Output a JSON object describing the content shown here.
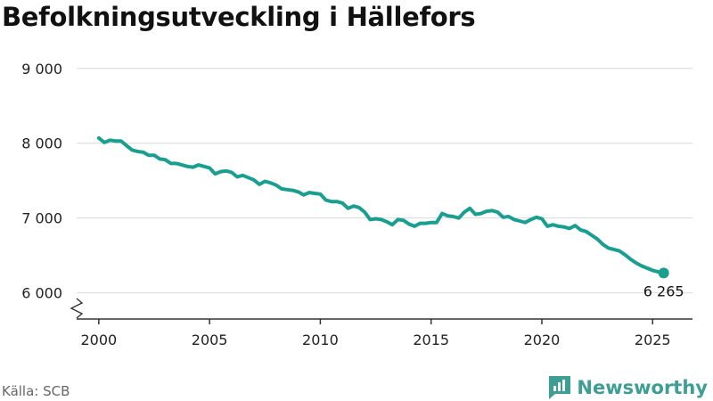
{
  "title": "Befolkningsutveckling i Hällefors",
  "source": "Källa: SCB",
  "brand": "Newsworthy",
  "colors": {
    "line": "#1a9e90",
    "brand": "#3d9e94"
  },
  "chart_data": {
    "type": "line",
    "title": "Befolkningsutveckling i Hällefors",
    "xlabel": "",
    "ylabel": "",
    "xlim": [
      1999.0,
      2026.8
    ],
    "ylim": [
      5650,
      9200
    ],
    "y_ticks": [
      6000,
      7000,
      8000,
      9000
    ],
    "y_tick_labels": [
      "6 000",
      "7 000",
      "8 000",
      "9 000"
    ],
    "x_ticks": [
      2000,
      2005,
      2010,
      2015,
      2020,
      2025
    ],
    "x_tick_labels": [
      "2000",
      "2005",
      "2010",
      "2015",
      "2020",
      "2025"
    ],
    "y_axis_break": true,
    "grid": "horizontal",
    "end_label": "6 265",
    "series": [
      {
        "x": [
          2000.0,
          2000.25,
          2000.5,
          2000.75,
          2001.0,
          2001.25,
          2001.5,
          2001.75,
          2002.0,
          2002.25,
          2002.5,
          2002.75,
          2003.0,
          2003.25,
          2003.5,
          2003.75,
          2004.0,
          2004.25,
          2004.5,
          2004.75,
          2005.0,
          2005.25,
          2005.5,
          2005.75,
          2006.0,
          2006.25,
          2006.5,
          2006.75,
          2007.0,
          2007.25,
          2007.5,
          2007.75,
          2008.0,
          2008.25,
          2008.5,
          2008.75,
          2009.0,
          2009.25,
          2009.5,
          2009.75,
          2010.0,
          2010.25,
          2010.5,
          2010.75,
          2011.0,
          2011.25,
          2011.5,
          2011.75,
          2012.0,
          2012.25,
          2012.5,
          2012.75,
          2013.0,
          2013.25,
          2013.5,
          2013.75,
          2014.0,
          2014.25,
          2014.5,
          2014.75,
          2015.0,
          2015.25,
          2015.5,
          2015.75,
          2016.0,
          2016.25,
          2016.5,
          2016.75,
          2017.0,
          2017.25,
          2017.5,
          2017.75,
          2018.0,
          2018.25,
          2018.5,
          2018.75,
          2019.0,
          2019.25,
          2019.5,
          2019.75,
          2020.0,
          2020.25,
          2020.5,
          2020.75,
          2021.0,
          2021.25,
          2021.5,
          2021.75,
          2022.0,
          2022.25,
          2022.5,
          2022.75,
          2023.0,
          2023.25,
          2023.5,
          2023.75,
          2024.0,
          2024.25,
          2024.5,
          2024.75,
          2025.0,
          2025.25,
          2025.5
        ],
        "values": [
          8070,
          8010,
          8040,
          8030,
          8030,
          7970,
          7910,
          7890,
          7880,
          7840,
          7840,
          7790,
          7780,
          7730,
          7730,
          7710,
          7690,
          7680,
          7710,
          7690,
          7670,
          7590,
          7620,
          7630,
          7610,
          7550,
          7570,
          7540,
          7510,
          7450,
          7490,
          7470,
          7440,
          7390,
          7380,
          7370,
          7350,
          7310,
          7340,
          7330,
          7320,
          7240,
          7220,
          7220,
          7200,
          7130,
          7160,
          7140,
          7080,
          6980,
          6990,
          6980,
          6950,
          6910,
          6980,
          6970,
          6920,
          6890,
          6930,
          6930,
          6940,
          6940,
          7060,
          7030,
          7020,
          7000,
          7080,
          7130,
          7050,
          7060,
          7090,
          7100,
          7080,
          7010,
          7020,
          6980,
          6960,
          6940,
          6980,
          7010,
          6990,
          6890,
          6910,
          6890,
          6880,
          6860,
          6900,
          6840,
          6820,
          6770,
          6720,
          6650,
          6600,
          6580,
          6560,
          6510,
          6450,
          6400,
          6360,
          6330,
          6300,
          6280,
          6265
        ]
      }
    ]
  }
}
